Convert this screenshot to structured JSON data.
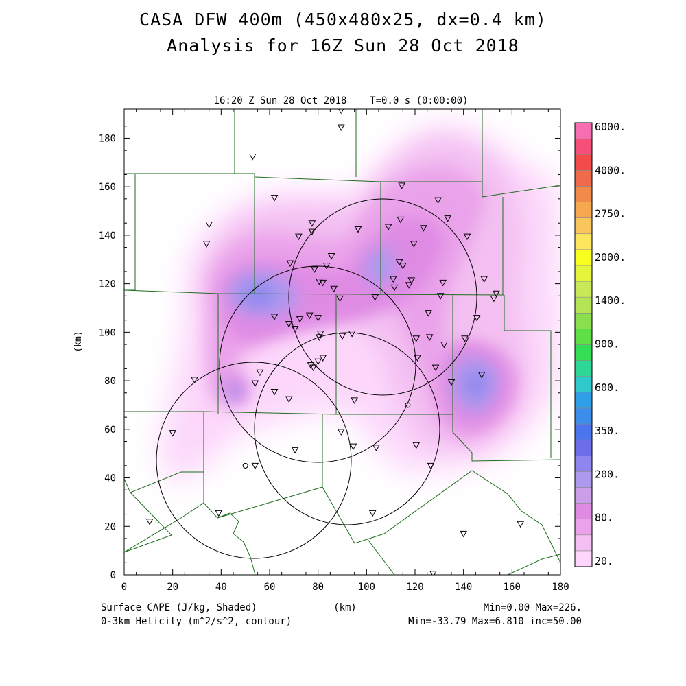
{
  "title": {
    "line1": "CASA DFW 400m (450x480x25, dx=0.4 km)",
    "line2": "Analysis for 16Z Sun 28 Oct 2018"
  },
  "subtitle": "16:20 Z Sun 28 Oct 2018    T=0.0 s (0:00:00)",
  "axes": {
    "x_label": "(km)",
    "y_label": "(km)",
    "x_range": [
      0,
      180
    ],
    "y_range": [
      0,
      192
    ],
    "x_ticks": [
      "0",
      "20",
      "40",
      "60",
      "80",
      "100",
      "120",
      "140",
      "160",
      "180"
    ],
    "y_ticks": [
      "0",
      "20",
      "40",
      "60",
      "80",
      "100",
      "120",
      "140",
      "160",
      "180"
    ]
  },
  "footer": {
    "left1": "Surface CAPE (J/kg, Shaded)",
    "left2": "0-3km Helicity (m^2/s^2, contour)",
    "center": "(km)",
    "right1": "Min=0.00 Max=226.",
    "right2": "Min=-33.79 Max=6.810 inc=50.00"
  },
  "colorbar": {
    "colors": [
      "#fcd7fb",
      "#f3c0f1",
      "#eaa3ea",
      "#df8be4",
      "#cc9de8",
      "#ad99ee",
      "#8e86ee",
      "#6c6ee9",
      "#4d74ef",
      "#3c8cec",
      "#2f9ee6",
      "#2fc9cb",
      "#2dd897",
      "#34df56",
      "#5ddf45",
      "#8adf4f",
      "#b5e556",
      "#c9e959",
      "#e4f53b",
      "#f9ff1f",
      "#fbe65d",
      "#f8c65b",
      "#f5a850",
      "#f28a4c",
      "#f06b4b",
      "#f24b49",
      "#f54f7a",
      "#f86fb1"
    ],
    "labels": [
      "20.",
      "80.",
      "200.",
      "350.",
      "600.",
      "900.",
      "1400.",
      "2000.",
      "2750.",
      "4000.",
      "6000."
    ]
  },
  "colors": {
    "boundary": "#1e6e1e",
    "helicity_contour": "#000000",
    "frame": "#000000"
  },
  "stations": [
    [
      89.5,
      191.5
    ],
    [
      89.5,
      184.5
    ],
    [
      53,
      172.5
    ],
    [
      62,
      155.5
    ],
    [
      35,
      144.5
    ],
    [
      34,
      136.5
    ],
    [
      77.5,
      145
    ],
    [
      77.5,
      141.5
    ],
    [
      72,
      139.5
    ],
    [
      96.5,
      142.5
    ],
    [
      109,
      143.5
    ],
    [
      114,
      146.5
    ],
    [
      114.5,
      160.5
    ],
    [
      129.5,
      154.5
    ],
    [
      133.5,
      147
    ],
    [
      123.5,
      143
    ],
    [
      119.5,
      136.5
    ],
    [
      141.5,
      139.5
    ],
    [
      68.5,
      128.5
    ],
    [
      78.5,
      126
    ],
    [
      83.5,
      127.5
    ],
    [
      85.5,
      131.5
    ],
    [
      80.5,
      121
    ],
    [
      82,
      120.5
    ],
    [
      86.5,
      118
    ],
    [
      89,
      114
    ],
    [
      103.5,
      114.5
    ],
    [
      113.5,
      129
    ],
    [
      115,
      127.5
    ],
    [
      111,
      122
    ],
    [
      111.5,
      118.5
    ],
    [
      118.5,
      121.5
    ],
    [
      117.5,
      119.5
    ],
    [
      131.5,
      120.5
    ],
    [
      130.5,
      115
    ],
    [
      148.5,
      122
    ],
    [
      152.5,
      114
    ],
    [
      153.5,
      116
    ],
    [
      145.5,
      106
    ],
    [
      125.5,
      108
    ],
    [
      62,
      106.5
    ],
    [
      68,
      103.5
    ],
    [
      72.5,
      105.5
    ],
    [
      76.5,
      107
    ],
    [
      80,
      106
    ],
    [
      70.5,
      101.5
    ],
    [
      81,
      99.5
    ],
    [
      80.5,
      98
    ],
    [
      90,
      98.5
    ],
    [
      94,
      99.5
    ],
    [
      120.5,
      97.5
    ],
    [
      126,
      98
    ],
    [
      132,
      95
    ],
    [
      140.5,
      97.5
    ],
    [
      121,
      89.5
    ],
    [
      128.5,
      85.5
    ],
    [
      147.5,
      82.5
    ],
    [
      135,
      79.5
    ],
    [
      77,
      86.5
    ],
    [
      78,
      85.5
    ],
    [
      80,
      88
    ],
    [
      82,
      89.5
    ],
    [
      29,
      80.5
    ],
    [
      56,
      83.5
    ],
    [
      54,
      79
    ],
    [
      62,
      75.5
    ],
    [
      68,
      72.5
    ],
    [
      95,
      72
    ],
    [
      20,
      58.5
    ],
    [
      89.5,
      59
    ],
    [
      94.5,
      53
    ],
    [
      70.5,
      51.5
    ],
    [
      104,
      52.5
    ],
    [
      120.5,
      53.5
    ],
    [
      126.5,
      45
    ],
    [
      54,
      45
    ],
    [
      39,
      25.5
    ],
    [
      102.5,
      25.5
    ],
    [
      10.5,
      22
    ],
    [
      140,
      17
    ],
    [
      163.5,
      21
    ],
    [
      127.5,
      0.5
    ]
  ],
  "open_circles": [
    [
      50,
      45
    ],
    [
      117,
      70
    ]
  ]
}
